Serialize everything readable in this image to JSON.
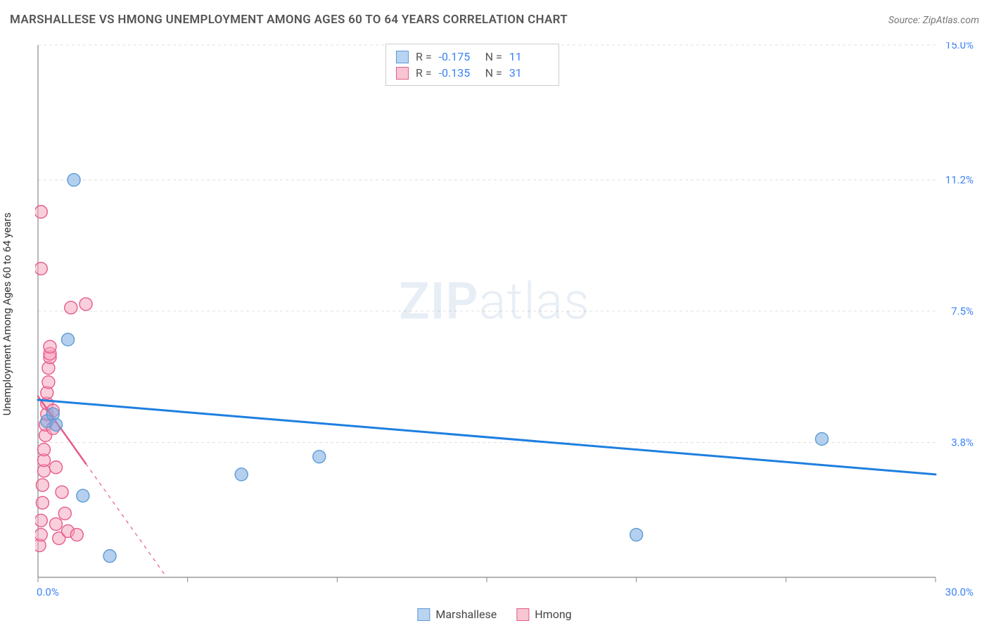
{
  "title": "MARSHALLESE VS HMONG UNEMPLOYMENT AMONG AGES 60 TO 64 YEARS CORRELATION CHART",
  "source": "Source: ZipAtlas.com",
  "y_axis_label": "Unemployment Among Ages 60 to 64 years",
  "watermark": {
    "bold": "ZIP",
    "light": "atlas"
  },
  "chart": {
    "type": "scatter",
    "background_color": "#ffffff",
    "grid_color": "#e0e0e0",
    "axis_color": "#888888",
    "xlim": [
      0,
      30
    ],
    "ylim": [
      0,
      15
    ],
    "x_ticks": [
      0,
      5,
      10,
      15,
      20,
      25,
      30
    ],
    "y_grid": [
      3.8,
      7.5,
      11.2,
      15.0
    ],
    "x_label_min": "0.0%",
    "x_label_max": "30.0%",
    "y_labels": [
      "3.8%",
      "7.5%",
      "11.2%",
      "15.0%"
    ],
    "tick_label_color": "#3b82f6",
    "tick_label_fontsize": 15
  },
  "correlation_box": {
    "rows": [
      {
        "swatch_fill": "#b9d4f1",
        "swatch_border": "#5b9bd5",
        "r_label": "R =",
        "r_value": "-0.175",
        "n_label": "N =",
        "n_value": "11"
      },
      {
        "swatch_fill": "#f7c6d2",
        "swatch_border": "#e65a8a",
        "r_label": "R =",
        "r_value": "-0.135",
        "n_label": "N =",
        "n_value": "31"
      }
    ]
  },
  "legend": {
    "items": [
      {
        "label": "Marshallese",
        "fill": "#b9d4f1",
        "border": "#5b9bd5"
      },
      {
        "label": "Hmong",
        "fill": "#f7c6d2",
        "border": "#e65a8a"
      }
    ]
  },
  "series": {
    "marshallese": {
      "color_fill": "rgba(120,170,225,0.55)",
      "color_stroke": "#5b9bd5",
      "marker_r": 9,
      "trend": {
        "x1": 0,
        "y1": 5.0,
        "x2": 30,
        "y2": 2.9,
        "color": "#1e7fe0",
        "width": 3,
        "solid_until_x": 30
      },
      "points": [
        {
          "x": 0.3,
          "y": 4.4
        },
        {
          "x": 0.5,
          "y": 4.6
        },
        {
          "x": 0.6,
          "y": 4.3
        },
        {
          "x": 1.0,
          "y": 6.7
        },
        {
          "x": 1.2,
          "y": 11.2
        },
        {
          "x": 1.5,
          "y": 2.3
        },
        {
          "x": 2.4,
          "y": 0.6
        },
        {
          "x": 6.8,
          "y": 2.9
        },
        {
          "x": 9.4,
          "y": 3.4
        },
        {
          "x": 20.0,
          "y": 1.2
        },
        {
          "x": 26.2,
          "y": 3.9
        }
      ]
    },
    "hmong": {
      "color_fill": "rgba(245,160,185,0.5)",
      "color_stroke": "#e65a8a",
      "marker_r": 9,
      "trend": {
        "x1": 0,
        "y1": 5.1,
        "x2": 4.3,
        "y2": 0,
        "color": "#e65a8a",
        "width": 2.5,
        "solid_until_x": 1.6
      },
      "points": [
        {
          "x": 0.05,
          "y": 0.9
        },
        {
          "x": 0.1,
          "y": 1.2
        },
        {
          "x": 0.1,
          "y": 1.6
        },
        {
          "x": 0.15,
          "y": 2.1
        },
        {
          "x": 0.15,
          "y": 2.6
        },
        {
          "x": 0.2,
          "y": 3.0
        },
        {
          "x": 0.2,
          "y": 3.3
        },
        {
          "x": 0.2,
          "y": 3.6
        },
        {
          "x": 0.25,
          "y": 4.0
        },
        {
          "x": 0.25,
          "y": 4.3
        },
        {
          "x": 0.3,
          "y": 4.6
        },
        {
          "x": 0.3,
          "y": 4.9
        },
        {
          "x": 0.3,
          "y": 5.2
        },
        {
          "x": 0.35,
          "y": 5.5
        },
        {
          "x": 0.35,
          "y": 5.9
        },
        {
          "x": 0.4,
          "y": 6.2
        },
        {
          "x": 0.4,
          "y": 6.3
        },
        {
          "x": 0.4,
          "y": 6.5
        },
        {
          "x": 0.1,
          "y": 8.7
        },
        {
          "x": 0.1,
          "y": 10.3
        },
        {
          "x": 0.5,
          "y": 4.7
        },
        {
          "x": 0.5,
          "y": 4.2
        },
        {
          "x": 0.6,
          "y": 3.1
        },
        {
          "x": 0.6,
          "y": 1.5
        },
        {
          "x": 0.7,
          "y": 1.1
        },
        {
          "x": 0.8,
          "y": 2.4
        },
        {
          "x": 0.9,
          "y": 1.8
        },
        {
          "x": 1.0,
          "y": 1.3
        },
        {
          "x": 1.1,
          "y": 7.6
        },
        {
          "x": 1.3,
          "y": 1.2
        },
        {
          "x": 1.6,
          "y": 7.7
        }
      ]
    }
  }
}
